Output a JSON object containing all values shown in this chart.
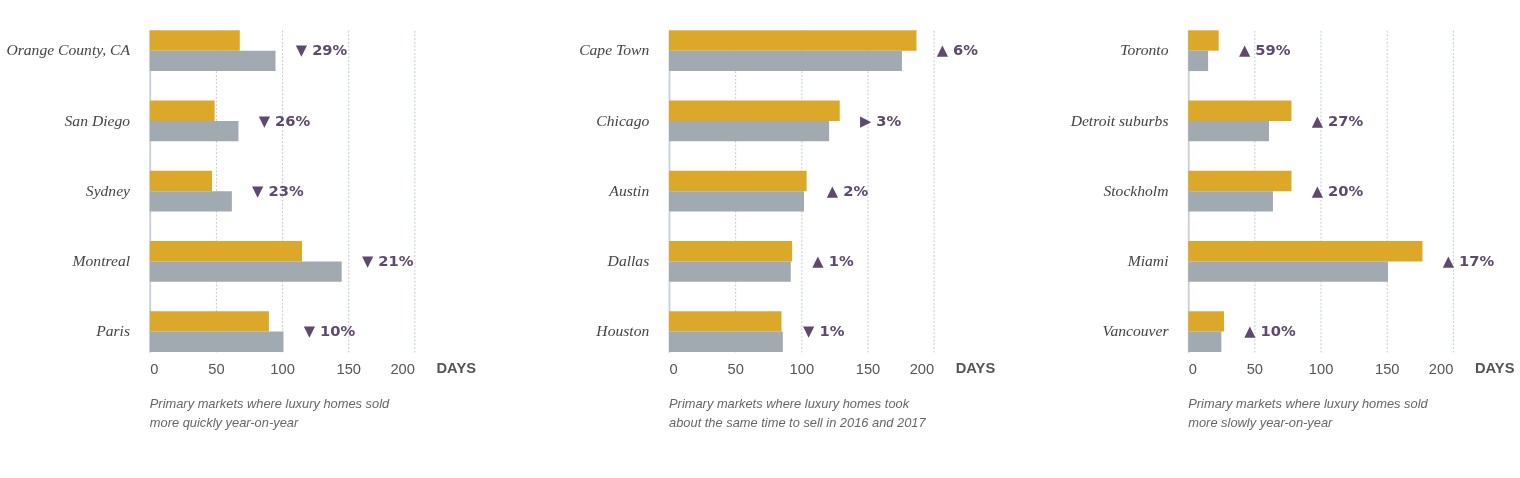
{
  "chart_data": [
    {
      "type": "bar",
      "orientation": "horizontal",
      "title": "Primary markets where luxury homes sold\nmore quickly year-on-year",
      "xlabel": "DAYS",
      "categories": [
        "Orange County, CA",
        "San Diego",
        "Sydney",
        "Montreal",
        "Paris"
      ],
      "series": [
        {
          "color": "#dca82a",
          "values": [
            68,
            49,
            47,
            115,
            90
          ]
        },
        {
          "color": "#a0aab0",
          "values": [
            95,
            67,
            62,
            145,
            101
          ]
        }
      ],
      "xticks": [
        0,
        50,
        100,
        150,
        200
      ],
      "grid": "x",
      "annotations": [
        "▼ 29%",
        "▼ 26%",
        "▼ 23%",
        "▼ 21%",
        "▼ 10%"
      ],
      "xlim": [
        0,
        200
      ]
    },
    {
      "type": "bar",
      "orientation": "horizontal",
      "title": "Primary markets where luxury homes took\nabout the same time to sell in 2016 and 2017",
      "xlabel": "DAYS",
      "categories": [
        "Cape Town",
        "Chicago",
        "Austin",
        "Dallas",
        "Houston"
      ],
      "series": [
        {
          "color": "#dca82a",
          "values": [
            187,
            129,
            104,
            93,
            85
          ]
        },
        {
          "color": "#a0aab0",
          "values": [
            176,
            121,
            102,
            92,
            86
          ]
        }
      ],
      "xticks": [
        0,
        50,
        100,
        150,
        200
      ],
      "grid": "x",
      "annotations": [
        "▲ 6%",
        "▶ 3%",
        "▲ 2%",
        "▲ 1%",
        "▼ 1%"
      ],
      "xlim": [
        0,
        200
      ]
    },
    {
      "type": "bar",
      "orientation": "horizontal",
      "title": "Primary markets where luxury homes sold\nmore slowly year-on-year",
      "xlabel": "DAYS",
      "categories": [
        "Toronto",
        "Detroit suburbs",
        "Stockholm",
        "Miami",
        "Vancouver"
      ],
      "series": [
        {
          "color": "#dca82a",
          "values": [
            23,
            78,
            78,
            177,
            27
          ]
        },
        {
          "color": "#a0aab0",
          "values": [
            15,
            61,
            64,
            151,
            25
          ]
        }
      ],
      "xticks": [
        0,
        50,
        100,
        150,
        200
      ],
      "grid": "x",
      "annotations": [
        "▲ 59%",
        "▲ 27%",
        "▲ 20%",
        "▲ 17%",
        "▲ 10%"
      ],
      "xlim": [
        0,
        200
      ]
    }
  ]
}
